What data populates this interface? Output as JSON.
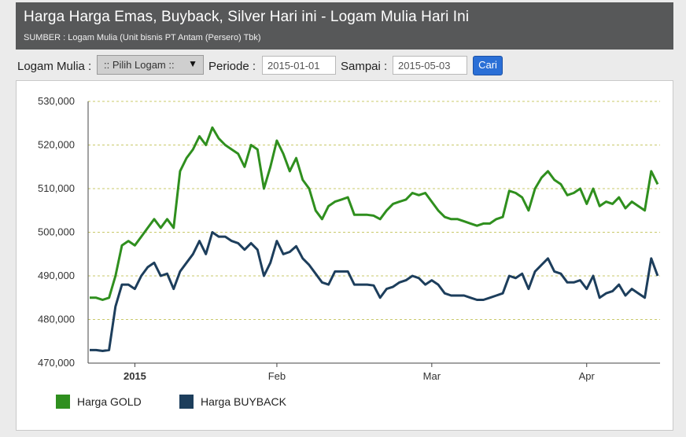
{
  "header": {
    "title": "Harga Harga Emas, Buyback, Silver Hari ini - Logam Mulia Hari Ini",
    "source": "SUMBER : Logam Mulia (Unit bisnis PT Antam (Persero) Tbk)"
  },
  "filter": {
    "metal_label": "Logam Mulia :",
    "metal_value": ":: Pilih Logam ::",
    "period_label": "Periode :",
    "period_value": "2015-01-01",
    "until_label": "Sampai :",
    "until_value": "2015-05-03",
    "search_label": "Cari"
  },
  "chart_data": {
    "type": "line",
    "title": "",
    "xlabel": "",
    "ylabel": "",
    "ylim": [
      470000,
      530000
    ],
    "yticks": [
      "530,000",
      "520,000",
      "510,000",
      "500,000",
      "490,000",
      "480,000",
      "470,000"
    ],
    "xticks": [
      "2015",
      "Feb",
      "Mar",
      "Apr"
    ],
    "grid": true,
    "legend_position": "bottom-left",
    "colors": {
      "gold": "#2f8f1e",
      "buyback": "#1d3e5c"
    },
    "series": [
      {
        "name": "Harga GOLD",
        "color": "#2f8f1e",
        "values": [
          485000,
          485000,
          484500,
          485000,
          490000,
          497000,
          498000,
          497000,
          499000,
          501000,
          503000,
          501000,
          503000,
          501000,
          514000,
          517000,
          519000,
          522000,
          520000,
          524000,
          521500,
          520000,
          519000,
          518000,
          515000,
          520000,
          519000,
          510000,
          515000,
          521000,
          518000,
          514000,
          517000,
          512000,
          510000,
          505000,
          503000,
          506000,
          507000,
          507500,
          508000,
          504000,
          504000,
          504000,
          503800,
          503000,
          505000,
          506500,
          507000,
          507500,
          509000,
          508500,
          509000,
          507000,
          505000,
          503500,
          503000,
          503000,
          502500,
          502000,
          501500,
          502000,
          502000,
          503000,
          503500,
          509500,
          509000,
          508000,
          505000,
          510000,
          512500,
          514000,
          512000,
          511000,
          508500,
          509000,
          510000,
          506500,
          510000,
          506000,
          507000,
          506500,
          508000,
          505500,
          507000,
          506000,
          505000,
          514000,
          511000
        ]
      },
      {
        "name": "Harga BUYBACK",
        "color": "#1d3e5c",
        "values": [
          473000,
          473000,
          472800,
          473000,
          483000,
          488000,
          488000,
          487000,
          490000,
          492000,
          493000,
          490000,
          490500,
          487000,
          491000,
          493000,
          495000,
          498000,
          495000,
          500000,
          499000,
          499000,
          498000,
          497500,
          496000,
          497500,
          496000,
          490000,
          493000,
          498000,
          495000,
          495500,
          496800,
          494000,
          492500,
          490500,
          488500,
          488000,
          491000,
          491000,
          491000,
          488000,
          488000,
          488000,
          487800,
          485000,
          487000,
          487500,
          488500,
          489000,
          490000,
          489500,
          488000,
          489000,
          488000,
          486000,
          485500,
          485500,
          485500,
          485000,
          484500,
          484500,
          485000,
          485500,
          486000,
          490000,
          489500,
          490500,
          487000,
          491000,
          492500,
          494000,
          491000,
          490500,
          488500,
          488500,
          489000,
          487000,
          490000,
          485000,
          486000,
          486500,
          488000,
          485500,
          487000,
          486000,
          485000,
          494000,
          490000
        ]
      }
    ]
  }
}
